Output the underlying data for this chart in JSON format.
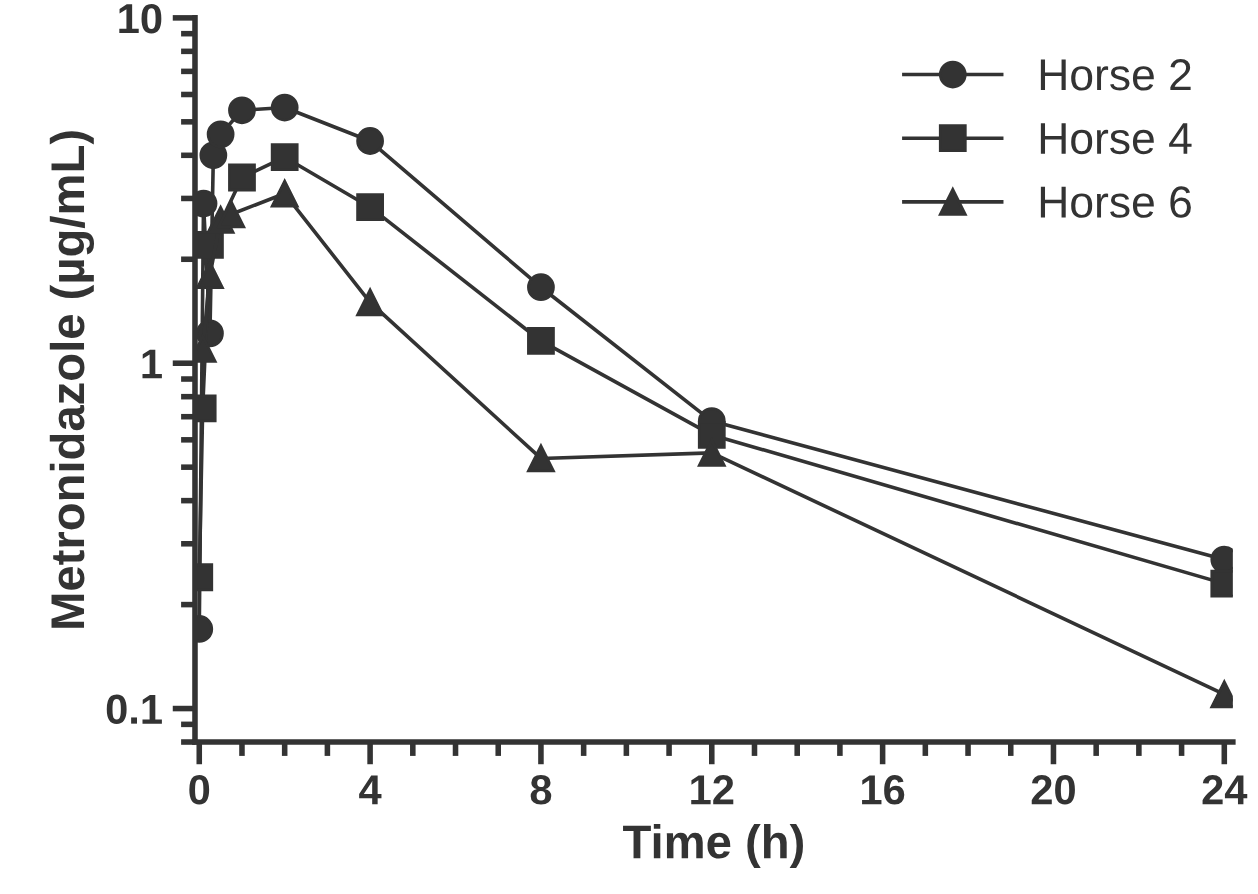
{
  "chart_data": {
    "type": "line",
    "xlabel": "Time (h)",
    "ylabel": "Metronidazole (µg/mL)",
    "log": "y",
    "xlim": [
      -0.1,
      24.2
    ],
    "xticks": [
      0,
      4,
      8,
      12,
      16,
      20,
      24
    ],
    "ylim": [
      0.08,
      10
    ],
    "yticks": [
      0.1,
      1,
      10
    ],
    "legend": "top right",
    "grid": false,
    "line_style": "solid",
    "series": [
      {
        "name": "Horse 2",
        "color": "#333333",
        "marker": "circle",
        "x": [
          0,
          0.1,
          0.25,
          0.33,
          0.5,
          1,
          2,
          4,
          8,
          12,
          24
        ],
        "values": [
          0.17,
          2.9,
          1.22,
          4.0,
          4.6,
          5.4,
          5.5,
          4.4,
          1.66,
          0.68,
          0.27
        ]
      },
      {
        "name": "Horse 4",
        "color": "#333333",
        "marker": "square",
        "x": [
          0,
          0.08,
          0.25,
          1,
          2,
          4,
          8,
          12,
          24
        ],
        "values": [
          0.24,
          0.74,
          2.2,
          3.45,
          3.95,
          2.83,
          1.16,
          0.62,
          0.23
        ]
      },
      {
        "name": "Horse 6",
        "color": "#333333",
        "marker": "triangle",
        "x": [
          0.08,
          0.25,
          0.5,
          0.75,
          2,
          4,
          8,
          12,
          24
        ],
        "values": [
          1.1,
          1.8,
          2.6,
          2.7,
          3.1,
          1.5,
          0.53,
          0.55,
          0.11
        ]
      }
    ]
  }
}
